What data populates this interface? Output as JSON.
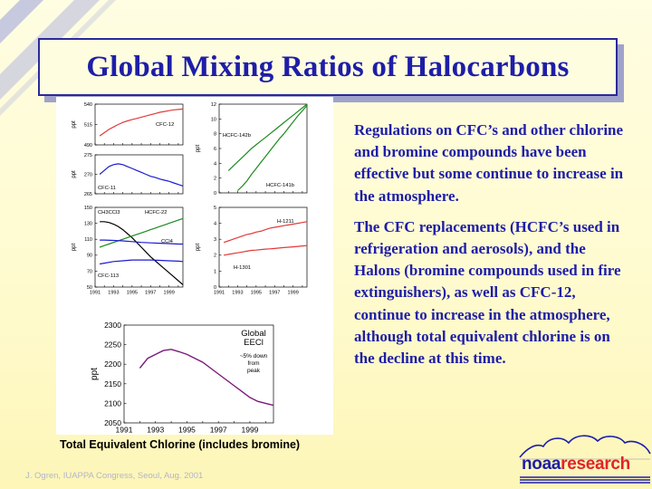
{
  "slide": {
    "title": "Global Mixing Ratios of Halocarbons",
    "paragraphs": [
      "Regulations on CFC’s and other chlorine and bromine compounds have been effective but some continue to increase in the atmosphere.",
      "The CFC replacements (HCFC’s used in refrigeration and aerosols), and the Halons (bromine compounds used in fire extinguishers), as well as CFC-12, continue to increase in the atmosphere, although total equivalent chlorine is on the decline at this time."
    ],
    "caption": "Total Equivalent Chlorine (includes bromine)",
    "footer": "J. Ogren, IUAPPA Congress, Seoul, Aug. 2001",
    "logo": {
      "noaa": "noaa",
      "research": "research"
    }
  },
  "colors": {
    "title": "#1e1ea8",
    "red": "#e23a3a",
    "blue": "#1b1bd0",
    "green": "#1c8a1c",
    "black": "#000000",
    "purple": "#7a1a7a"
  },
  "chart_data": [
    {
      "type": "line",
      "panel": "CFC-12",
      "ylabel": "ppt",
      "ylim": [
        490,
        540
      ],
      "yticks": [
        490,
        515,
        540
      ],
      "xlim": [
        1991,
        2000.5
      ],
      "series": [
        {
          "name": "CFC-12",
          "color": "red",
          "x": [
            1991.5,
            1992,
            1992.5,
            1993,
            1993.5,
            1994,
            1994.5,
            1995,
            1995.5,
            1996,
            1996.5,
            1997,
            1997.5,
            1998,
            1998.5,
            1999,
            1999.5,
            2000,
            2000.5
          ],
          "y": [
            501,
            505,
            509,
            512,
            515,
            517.5,
            519.5,
            521,
            522.5,
            524,
            525.5,
            527,
            528.5,
            530,
            531,
            532,
            533,
            533.5,
            534
          ]
        }
      ]
    },
    {
      "type": "line",
      "panel": "CFC-11",
      "ylabel": "ppt",
      "ylim": [
        265,
        275
      ],
      "yticks": [
        265,
        270,
        275
      ],
      "xlim": [
        1991,
        2000.5
      ],
      "series": [
        {
          "name": "CFC-11",
          "color": "blue",
          "x": [
            1991.5,
            1992,
            1992.5,
            1993,
            1993.5,
            1994,
            1994.5,
            1995,
            1995.5,
            1996,
            1996.5,
            1997,
            1997.5,
            1998,
            1998.5,
            1999,
            1999.5,
            2000,
            2000.5
          ],
          "y": [
            270,
            271,
            272,
            272.5,
            272.7,
            272.5,
            272,
            271.5,
            271,
            270.5,
            270,
            269.5,
            269.2,
            268.8,
            268.5,
            268.2,
            267.8,
            267.4,
            267
          ]
        }
      ]
    },
    {
      "type": "line",
      "panel": "HCFC",
      "ylabel": "ppt",
      "ylim": [
        0,
        12
      ],
      "yticks": [
        0.0,
        2.0,
        4.0,
        6.0,
        8.0,
        10.0,
        12.0
      ],
      "xlim": [
        1991,
        2000.5
      ],
      "series": [
        {
          "name": "HCFC-142b",
          "color": "green",
          "x": [
            1992,
            1992.5,
            1993,
            1993.5,
            1994,
            1994.5,
            1995,
            1995.5,
            1996,
            1996.5,
            1997,
            1997.5,
            1998,
            1998.5,
            1999,
            1999.5,
            2000,
            2000.5
          ],
          "y": [
            3.0,
            3.6,
            4.2,
            4.8,
            5.4,
            6.0,
            6.5,
            7.0,
            7.5,
            8.0,
            8.5,
            9.0,
            9.5,
            10.0,
            10.5,
            11.0,
            11.5,
            12.0
          ]
        },
        {
          "name": "HCFC-141b",
          "color": "green",
          "x": [
            1993,
            1993.5,
            1994,
            1994.5,
            1995,
            1995.5,
            1996,
            1996.5,
            1997,
            1997.5,
            1998,
            1998.5,
            1999,
            1999.5,
            2000,
            2000.5
          ],
          "y": [
            0.3,
            0.9,
            1.6,
            2.5,
            3.3,
            4.1,
            4.9,
            5.7,
            6.5,
            7.3,
            8.0,
            8.8,
            9.6,
            10.4,
            11.1,
            11.8
          ]
        }
      ]
    },
    {
      "type": "line",
      "panel": "CH3CCl3 / HCFC-22 / CCl4 / CFC-113",
      "ylabel": "ppt",
      "ylim": [
        50,
        150
      ],
      "yticks": [
        50,
        70,
        90,
        110,
        130,
        150
      ],
      "xticks": [
        1991,
        1993,
        1995,
        1997,
        1999
      ],
      "xlim": [
        1991,
        2000.5
      ],
      "series": [
        {
          "name": "CH3CCl3",
          "color": "black",
          "x": [
            1991.5,
            1992,
            1992.5,
            1993,
            1993.5,
            1994,
            1994.5,
            1995,
            1995.5,
            1996,
            1996.5,
            1997,
            1997.5,
            1998,
            1998.5,
            1999,
            1999.5,
            2000,
            2000.5
          ],
          "y": [
            132,
            132,
            131,
            129,
            126,
            122,
            117,
            112,
            106,
            100,
            94,
            88,
            83,
            78,
            73,
            68,
            63,
            58,
            53
          ]
        },
        {
          "name": "HCFC-22",
          "color": "green",
          "x": [
            1991.5,
            1992,
            1992.5,
            1993,
            1993.5,
            1994,
            1994.5,
            1995,
            1995.5,
            1996,
            1996.5,
            1997,
            1997.5,
            1998,
            1998.5,
            1999,
            1999.5,
            2000,
            2000.5
          ],
          "y": [
            100,
            102,
            104,
            106,
            108,
            110,
            112,
            114,
            116,
            118,
            120,
            122,
            124,
            126,
            128,
            130,
            132,
            134,
            136
          ]
        },
        {
          "name": "CCl4",
          "color": "blue",
          "x": [
            1991.5,
            1992,
            1993,
            1994,
            1995,
            1996,
            1997,
            1998,
            1999,
            2000,
            2000.5
          ],
          "y": [
            109,
            109,
            108.5,
            108,
            107,
            106,
            105.5,
            105,
            104.5,
            104,
            104
          ]
        },
        {
          "name": "CFC-113",
          "color": "blue",
          "x": [
            1991.5,
            1992,
            1993,
            1994,
            1995,
            1996,
            1997,
            1998,
            1999,
            2000,
            2000.5
          ],
          "y": [
            79,
            80,
            82,
            83,
            84,
            84,
            84,
            83.5,
            83,
            82.5,
            82
          ]
        }
      ]
    },
    {
      "type": "line",
      "panel": "Halons",
      "ylabel": "ppt",
      "ylim": [
        0,
        5
      ],
      "yticks": [
        0.0,
        1.0,
        2.0,
        3.0,
        4.0,
        5.0
      ],
      "xticks": [
        1991,
        1993,
        1995,
        1997,
        1999
      ],
      "xlim": [
        1991,
        2000.5
      ],
      "series": [
        {
          "name": "H-1211",
          "color": "red",
          "x": [
            1991.5,
            1992,
            1992.5,
            1993,
            1993.5,
            1994,
            1994.5,
            1995,
            1995.5,
            1996,
            1996.5,
            1997,
            1997.5,
            1998,
            1998.5,
            1999,
            1999.5,
            2000,
            2000.5
          ],
          "y": [
            2.8,
            2.9,
            3.0,
            3.1,
            3.2,
            3.3,
            3.35,
            3.45,
            3.5,
            3.6,
            3.7,
            3.75,
            3.8,
            3.85,
            3.9,
            3.95,
            4.0,
            4.05,
            4.1
          ]
        },
        {
          "name": "H-1301",
          "color": "red",
          "x": [
            1991.5,
            1992,
            1992.5,
            1993,
            1993.5,
            1994,
            1994.5,
            1995,
            1995.5,
            1996,
            1996.5,
            1997,
            1997.5,
            1998,
            1998.5,
            1999,
            1999.5,
            2000,
            2000.5
          ],
          "y": [
            2.0,
            2.05,
            2.1,
            2.15,
            2.2,
            2.25,
            2.3,
            2.32,
            2.35,
            2.38,
            2.4,
            2.42,
            2.45,
            2.48,
            2.5,
            2.52,
            2.55,
            2.58,
            2.6
          ]
        }
      ]
    },
    {
      "type": "line",
      "panel": "EECl",
      "title": "Global\nEECl",
      "annotation": "~5% down\nfrom\npeak",
      "ylabel": "ppt",
      "ylim": [
        2050,
        2300
      ],
      "yticks": [
        2050,
        2100,
        2150,
        2200,
        2250,
        2300
      ],
      "xticks": [
        1991,
        1993,
        1995,
        1997,
        1999
      ],
      "xlim": [
        1991,
        2000.5
      ],
      "series": [
        {
          "name": "EECl",
          "color": "purple",
          "x": [
            1992,
            1992.5,
            1993,
            1993.5,
            1994,
            1994.5,
            1995,
            1995.5,
            1996,
            1996.5,
            1997,
            1997.5,
            1998,
            1998.5,
            1999,
            1999.5,
            2000,
            2000.5
          ],
          "y": [
            2190,
            2215,
            2225,
            2235,
            2238,
            2232,
            2225,
            2215,
            2205,
            2190,
            2175,
            2160,
            2145,
            2130,
            2115,
            2105,
            2100,
            2095
          ]
        }
      ]
    }
  ]
}
